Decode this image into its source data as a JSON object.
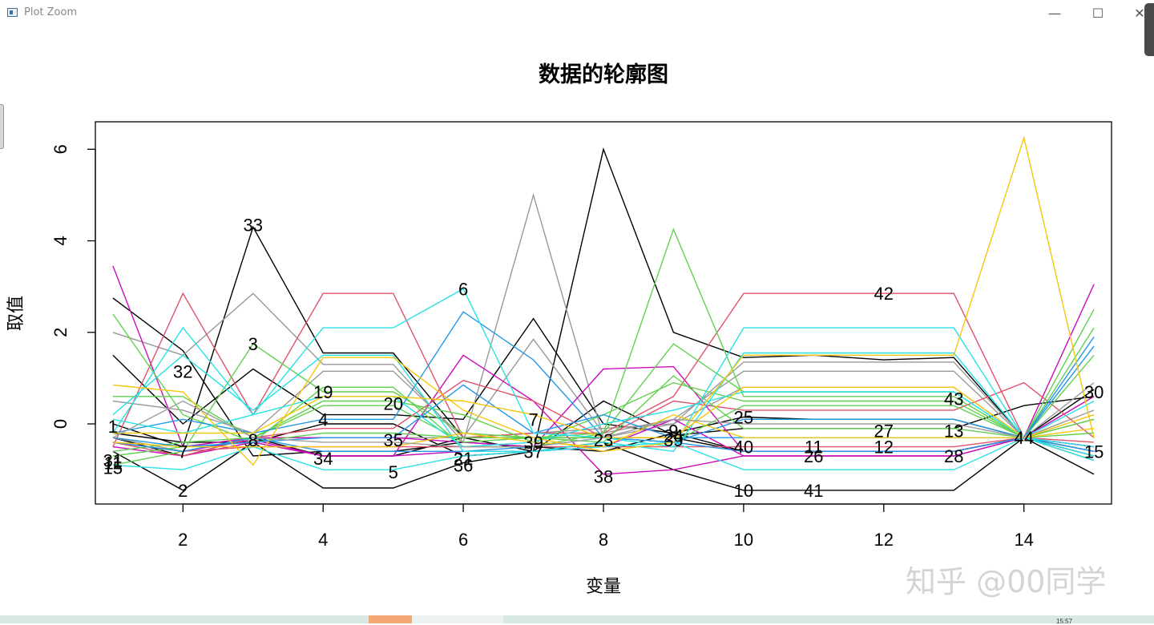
{
  "window": {
    "title": "Plot Zoom",
    "minimize": "—",
    "maximize": "☐",
    "close": "✕"
  },
  "watermark": "知乎 @00同学",
  "taskbar": {
    "clock": "15:57"
  },
  "chart_data": {
    "type": "line",
    "title": "数据的轮廓图",
    "xlabel": "变量",
    "ylabel": "取值",
    "xlim": [
      0.75,
      15.25
    ],
    "ylim": [
      -1.75,
      6.6
    ],
    "xticks": [
      2,
      4,
      6,
      8,
      10,
      12,
      14
    ],
    "yticks": [
      0,
      2,
      4,
      6
    ],
    "grid": false,
    "legend": "none",
    "x": [
      1,
      2,
      3,
      4,
      5,
      6,
      7,
      8,
      9,
      10,
      11,
      12,
      13,
      14,
      15
    ],
    "series": [
      {
        "color": "#000000",
        "values": [
          2.75,
          1.6,
          -0.7,
          -0.6,
          -0.6,
          -0.4,
          -0.5,
          -0.6,
          -0.2,
          -0.6,
          -0.6,
          -0.6,
          -0.6,
          -0.3,
          -0.6
        ]
      },
      {
        "color": "#000000",
        "values": [
          -0.6,
          -1.45,
          -0.4,
          -1.4,
          -1.4,
          -0.85,
          -0.6,
          -0.4,
          -1.0,
          -1.45,
          -1.45,
          -1.45,
          -1.45,
          -0.3,
          -1.1
        ]
      },
      {
        "color": "#000000",
        "values": [
          0.0,
          -0.5,
          4.3,
          1.55,
          1.55,
          -0.3,
          -0.3,
          -0.3,
          -0.3,
          -0.6,
          -0.6,
          -0.6,
          -0.6,
          -0.3,
          -0.5
        ]
      },
      {
        "color": "#000000",
        "values": [
          -0.2,
          -0.4,
          -0.4,
          0.0,
          0.0,
          -0.7,
          -0.6,
          6.0,
          2.0,
          1.45,
          1.5,
          1.4,
          1.45,
          -0.3,
          0.75
        ]
      },
      {
        "color": "#000000",
        "values": [
          1.5,
          0.0,
          1.2,
          0.2,
          0.2,
          0.1,
          2.3,
          0.0,
          -0.2,
          0.15,
          0.1,
          0.1,
          0.1,
          -0.3,
          -0.7
        ]
      },
      {
        "color": "#000000",
        "values": [
          -0.3,
          -0.7,
          -0.3,
          -0.7,
          -0.7,
          -0.3,
          -0.6,
          0.5,
          -0.25,
          -0.1,
          -0.1,
          -0.1,
          -0.1,
          0.4,
          0.6
        ]
      },
      {
        "color": "#999999",
        "values": [
          2.0,
          1.5,
          2.85,
          1.3,
          1.3,
          -0.4,
          5.0,
          -0.3,
          0.0,
          1.35,
          1.35,
          1.35,
          1.35,
          -0.3,
          0.1
        ]
      },
      {
        "color": "#999999",
        "values": [
          0.5,
          0.3,
          -0.2,
          1.15,
          1.15,
          -0.3,
          1.85,
          -0.2,
          0.1,
          1.15,
          1.15,
          1.15,
          1.15,
          -0.3,
          0.3
        ]
      },
      {
        "color": "#999999",
        "values": [
          -0.3,
          -0.6,
          -0.3,
          -0.3,
          -0.3,
          -0.3,
          -0.2,
          -0.1,
          0.0,
          0.8,
          0.8,
          0.8,
          0.8,
          -0.3,
          0.6
        ]
      },
      {
        "color": "#CD0BBC",
        "values": [
          3.45,
          -0.5,
          -0.3,
          -0.3,
          -0.3,
          -0.4,
          -0.5,
          1.2,
          1.25,
          -0.6,
          -0.6,
          -0.6,
          -0.6,
          -0.3,
          3.05
        ]
      },
      {
        "color": "#CD0BBC",
        "values": [
          -0.4,
          -0.6,
          -0.35,
          -0.7,
          -0.7,
          1.5,
          0.5,
          -1.1,
          -1.0,
          -0.7,
          -0.7,
          -0.7,
          -0.7,
          -0.3,
          -0.5
        ]
      },
      {
        "color": "#CD0BBC",
        "values": [
          -0.5,
          -0.7,
          -0.4,
          -0.7,
          -0.7,
          -0.6,
          -0.6,
          -0.5,
          0.1,
          -0.7,
          -0.7,
          -0.7,
          -0.7,
          -0.3,
          0.6
        ]
      },
      {
        "color": "#DF536B",
        "values": [
          -0.5,
          2.85,
          0.2,
          2.85,
          2.85,
          -0.3,
          -0.2,
          -0.2,
          0.6,
          2.85,
          2.85,
          2.85,
          2.85,
          -0.3,
          -0.8
        ]
      },
      {
        "color": "#DF536B",
        "values": [
          -0.4,
          -0.7,
          -0.3,
          -0.1,
          -0.1,
          0.95,
          0.5,
          -0.3,
          0.5,
          0.3,
          0.3,
          0.3,
          0.3,
          0.9,
          -0.3
        ]
      },
      {
        "color": "#DF536B",
        "values": [
          -0.4,
          -0.6,
          -0.5,
          -0.5,
          -0.5,
          -0.5,
          -0.5,
          -0.5,
          -0.5,
          -0.5,
          -0.5,
          -0.5,
          -0.5,
          -0.3,
          -0.4
        ]
      },
      {
        "color": "#61D04F",
        "values": [
          -0.9,
          -0.6,
          1.75,
          0.7,
          0.7,
          -0.2,
          -0.3,
          -0.2,
          4.25,
          0.6,
          0.6,
          0.6,
          0.6,
          -0.3,
          2.5
        ]
      },
      {
        "color": "#61D04F",
        "values": [
          2.4,
          0.2,
          -0.4,
          0.8,
          0.8,
          -0.5,
          -0.5,
          -0.2,
          1.75,
          0.7,
          0.7,
          0.7,
          0.7,
          -0.3,
          2.1
        ]
      },
      {
        "color": "#61D04F",
        "values": [
          0.6,
          0.6,
          -0.3,
          0.5,
          0.5,
          0.2,
          -0.4,
          0.2,
          0.9,
          0.5,
          0.5,
          0.5,
          0.5,
          -0.3,
          1.5
        ]
      },
      {
        "color": "#61D04F",
        "values": [
          -0.7,
          -0.5,
          -0.4,
          -0.2,
          -0.2,
          -0.3,
          -0.3,
          -0.4,
          1.05,
          -0.1,
          -0.1,
          -0.1,
          -0.1,
          -0.3,
          0.1
        ]
      },
      {
        "color": "#61D04F",
        "values": [
          -0.6,
          -0.4,
          -0.3,
          0.4,
          0.4,
          -0.4,
          -0.3,
          -0.3,
          -0.4,
          0.4,
          0.4,
          0.4,
          0.4,
          -0.3,
          -0.2
        ]
      },
      {
        "color": "#2297E6",
        "values": [
          -0.2,
          0.1,
          -0.2,
          0.1,
          0.1,
          2.45,
          1.4,
          -0.3,
          -0.4,
          0.1,
          0.1,
          0.1,
          0.1,
          -0.3,
          1.9
        ]
      },
      {
        "color": "#2297E6",
        "values": [
          -0.3,
          -0.5,
          -0.4,
          -0.3,
          -0.3,
          0.85,
          -0.2,
          0.2,
          -0.3,
          -0.3,
          -0.3,
          -0.3,
          -0.3,
          -0.3,
          1.7
        ]
      },
      {
        "color": "#2297E6",
        "values": [
          -0.4,
          -0.6,
          -0.3,
          -0.6,
          -0.6,
          -0.6,
          -0.5,
          -0.3,
          -0.4,
          -0.6,
          -0.6,
          -0.6,
          -0.6,
          -0.3,
          -0.6
        ]
      },
      {
        "color": "#28E2E5",
        "values": [
          -0.2,
          2.1,
          0.2,
          2.1,
          2.1,
          2.95,
          -0.2,
          -0.3,
          -0.5,
          2.1,
          2.1,
          2.1,
          2.1,
          -0.3,
          -0.8
        ]
      },
      {
        "color": "#28E2E5",
        "values": [
          0.2,
          1.5,
          0.3,
          1.5,
          1.5,
          -0.6,
          -0.6,
          -0.4,
          -0.6,
          1.55,
          1.55,
          1.55,
          1.55,
          -0.3,
          -0.5
        ]
      },
      {
        "color": "#28E2E5",
        "values": [
          -0.9,
          -1.0,
          -0.5,
          -1.0,
          -1.0,
          -0.7,
          -0.6,
          -0.5,
          -0.4,
          -1.0,
          -1.0,
          -1.0,
          -1.0,
          -0.3,
          -0.7
        ]
      },
      {
        "color": "#28E2E5",
        "values": [
          0.1,
          -0.2,
          0.2,
          0.6,
          0.6,
          -0.5,
          -0.4,
          0.0,
          0.3,
          0.7,
          0.7,
          0.7,
          0.7,
          -0.3,
          0.5
        ]
      },
      {
        "color": "#F5C710",
        "values": [
          0.85,
          0.7,
          -0.9,
          1.45,
          1.45,
          0.3,
          -0.3,
          -0.6,
          -0.4,
          1.5,
          1.5,
          1.5,
          1.5,
          6.25,
          -0.3
        ]
      },
      {
        "color": "#F5C710",
        "values": [
          -0.2,
          -0.2,
          -0.2,
          0.6,
          0.6,
          0.5,
          0.2,
          -0.3,
          -0.3,
          0.8,
          0.8,
          0.8,
          0.8,
          -0.3,
          -0.1
        ]
      },
      {
        "color": "#F5C710",
        "values": [
          -0.4,
          -0.5,
          -0.5,
          -0.5,
          -0.5,
          -0.2,
          -0.4,
          -0.5,
          0.2,
          -0.3,
          -0.3,
          -0.3,
          -0.3,
          -0.3,
          0.2
        ]
      },
      {
        "color": "#9E9E9E",
        "values": [
          -0.3,
          0.5,
          -0.3,
          -0.4,
          -0.4,
          -0.5,
          -0.5,
          -0.3,
          0.1,
          0.0,
          0.0,
          0.0,
          0.0,
          -0.3,
          0.9
        ]
      }
    ],
    "point_labels": [
      {
        "text": "1",
        "x": 1,
        "y": -0.05
      },
      {
        "text": "11",
        "x": 1,
        "y": -0.85
      },
      {
        "text": "31",
        "x": 1,
        "y": -0.8
      },
      {
        "text": "15",
        "x": 1,
        "y": -0.95
      },
      {
        "text": "2",
        "x": 2,
        "y": -1.45
      },
      {
        "text": "32",
        "x": 2,
        "y": 1.15
      },
      {
        "text": "7",
        "x": 2,
        "y": -0.6
      },
      {
        "text": "33",
        "x": 3,
        "y": 4.35
      },
      {
        "text": "3",
        "x": 3,
        "y": 1.75
      },
      {
        "text": "8",
        "x": 3,
        "y": -0.35
      },
      {
        "text": "19",
        "x": 4,
        "y": 0.7
      },
      {
        "text": "4",
        "x": 4,
        "y": 0.1
      },
      {
        "text": "34",
        "x": 4,
        "y": -0.75
      },
      {
        "text": "20",
        "x": 5,
        "y": 0.45
      },
      {
        "text": "35",
        "x": 5,
        "y": -0.35
      },
      {
        "text": "5",
        "x": 5,
        "y": -1.05
      },
      {
        "text": "6",
        "x": 6,
        "y": 2.95
      },
      {
        "text": "21",
        "x": 6,
        "y": -0.75
      },
      {
        "text": "36",
        "x": 6,
        "y": -0.9
      },
      {
        "text": "7",
        "x": 7,
        "y": 0.1
      },
      {
        "text": "39",
        "x": 7,
        "y": -0.4
      },
      {
        "text": "37",
        "x": 7,
        "y": -0.6
      },
      {
        "text": "23",
        "x": 8,
        "y": -0.35
      },
      {
        "text": "38",
        "x": 8,
        "y": -1.15
      },
      {
        "text": "9",
        "x": 9,
        "y": -0.15
      },
      {
        "text": "24",
        "x": 9,
        "y": -0.25
      },
      {
        "text": "39",
        "x": 9,
        "y": -0.35
      },
      {
        "text": "25",
        "x": 10,
        "y": 0.15
      },
      {
        "text": "40",
        "x": 10,
        "y": -0.5
      },
      {
        "text": "10",
        "x": 10,
        "y": -1.45
      },
      {
        "text": "11",
        "x": 11,
        "y": -0.5
      },
      {
        "text": "26",
        "x": 11,
        "y": -0.7
      },
      {
        "text": "41",
        "x": 11,
        "y": -1.45
      },
      {
        "text": "42",
        "x": 12,
        "y": 2.85
      },
      {
        "text": "27",
        "x": 12,
        "y": -0.15
      },
      {
        "text": "12",
        "x": 12,
        "y": -0.5
      },
      {
        "text": "43",
        "x": 13,
        "y": 0.55
      },
      {
        "text": "13",
        "x": 13,
        "y": -0.15
      },
      {
        "text": "28",
        "x": 13,
        "y": -0.7
      },
      {
        "text": "44",
        "x": 14,
        "y": -0.3
      },
      {
        "text": "30",
        "x": 15,
        "y": 0.7
      },
      {
        "text": "15",
        "x": 15,
        "y": -0.6
      }
    ]
  }
}
